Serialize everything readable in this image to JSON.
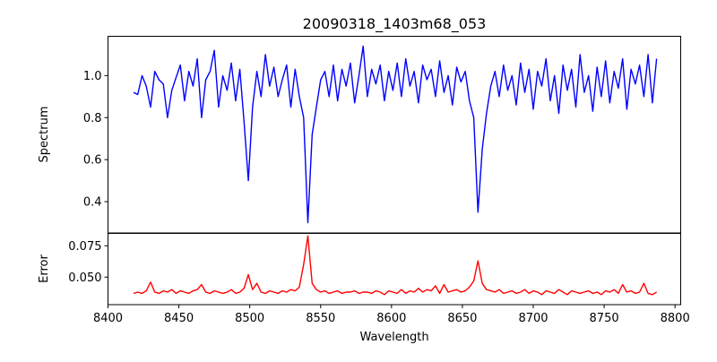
{
  "chart_data": [
    {
      "type": "line",
      "title": "20090318_1403m68_053",
      "xlabel": "",
      "ylabel": "Spectrum",
      "xlim": [
        8400,
        8804
      ],
      "ylim": [
        0.251,
        1.187
      ],
      "yticks": [
        0.4,
        0.6,
        0.8,
        1.0
      ],
      "ytick_labels": [
        "0.4",
        "0.6",
        "0.8",
        "1.0"
      ],
      "grid": false,
      "color": "#0000ff",
      "series": [
        {
          "name": "Spectrum",
          "x_start": 8418,
          "x_step": 3,
          "values": [
            0.92,
            0.91,
            1.0,
            0.95,
            0.85,
            1.02,
            0.98,
            0.96,
            0.8,
            0.93,
            0.99,
            1.05,
            0.88,
            1.02,
            0.95,
            1.08,
            0.8,
            0.98,
            1.02,
            1.12,
            0.85,
            1.0,
            0.93,
            1.06,
            0.88,
            1.03,
            0.78,
            0.5,
            0.85,
            1.02,
            0.9,
            1.1,
            0.95,
            1.04,
            0.9,
            0.98,
            1.05,
            0.85,
            1.03,
            0.9,
            0.8,
            0.3,
            0.72,
            0.85,
            0.98,
            1.02,
            0.9,
            1.05,
            0.88,
            1.03,
            0.95,
            1.06,
            0.87,
            1.0,
            1.14,
            0.9,
            1.03,
            0.96,
            1.05,
            0.88,
            1.02,
            0.93,
            1.06,
            0.9,
            1.08,
            0.95,
            1.02,
            0.87,
            1.05,
            0.98,
            1.03,
            0.9,
            1.07,
            0.92,
            1.0,
            0.86,
            1.04,
            0.97,
            1.02,
            0.88,
            0.8,
            0.35,
            0.65,
            0.82,
            0.95,
            1.02,
            0.9,
            1.05,
            0.93,
            1.0,
            0.86,
            1.06,
            0.92,
            1.03,
            0.84,
            1.02,
            0.95,
            1.08,
            0.88,
            1.0,
            0.82,
            1.05,
            0.93,
            1.03,
            0.85,
            1.1,
            0.92,
            1.0,
            0.83,
            1.04,
            0.9,
            1.07,
            0.87,
            1.02,
            0.94,
            1.08,
            0.84,
            1.03,
            0.96,
            1.05,
            0.9,
            1.1,
            0.87,
            1.08
          ]
        }
      ]
    },
    {
      "type": "line",
      "title": "",
      "xlabel": "Wavelength",
      "ylabel": "Error",
      "xlim": [
        8400,
        8804
      ],
      "ylim": [
        0.028,
        0.0849
      ],
      "xticks": [
        8400,
        8450,
        8500,
        8550,
        8600,
        8650,
        8700,
        8750,
        8800
      ],
      "xtick_labels": [
        "8400",
        "8450",
        "8500",
        "8550",
        "8600",
        "8650",
        "8700",
        "8750",
        "8800"
      ],
      "yticks": [
        0.05,
        0.075
      ],
      "ytick_labels": [
        "0.050",
        "0.075"
      ],
      "grid": false,
      "color": "#ff0000",
      "series": [
        {
          "name": "Error",
          "x_start": 8418,
          "x_step": 3,
          "values": [
            0.037,
            0.038,
            0.037,
            0.039,
            0.046,
            0.038,
            0.037,
            0.039,
            0.038,
            0.04,
            0.037,
            0.039,
            0.038,
            0.037,
            0.039,
            0.04,
            0.044,
            0.038,
            0.037,
            0.039,
            0.038,
            0.037,
            0.038,
            0.04,
            0.037,
            0.038,
            0.041,
            0.052,
            0.04,
            0.045,
            0.038,
            0.037,
            0.039,
            0.038,
            0.037,
            0.039,
            0.038,
            0.04,
            0.039,
            0.042,
            0.06,
            0.083,
            0.045,
            0.04,
            0.038,
            0.039,
            0.037,
            0.038,
            0.039,
            0.037,
            0.038,
            0.038,
            0.039,
            0.037,
            0.038,
            0.038,
            0.037,
            0.039,
            0.038,
            0.036,
            0.039,
            0.038,
            0.037,
            0.04,
            0.037,
            0.039,
            0.038,
            0.041,
            0.038,
            0.04,
            0.039,
            0.043,
            0.037,
            0.044,
            0.038,
            0.039,
            0.04,
            0.038,
            0.039,
            0.042,
            0.047,
            0.063,
            0.045,
            0.04,
            0.039,
            0.038,
            0.04,
            0.037,
            0.038,
            0.039,
            0.037,
            0.038,
            0.04,
            0.037,
            0.039,
            0.038,
            0.036,
            0.039,
            0.038,
            0.037,
            0.04,
            0.038,
            0.036,
            0.039,
            0.038,
            0.037,
            0.038,
            0.039,
            0.037,
            0.038,
            0.036,
            0.039,
            0.038,
            0.04,
            0.037,
            0.044,
            0.038,
            0.039,
            0.037,
            0.038,
            0.045,
            0.037,
            0.036,
            0.038
          ]
        }
      ]
    }
  ]
}
